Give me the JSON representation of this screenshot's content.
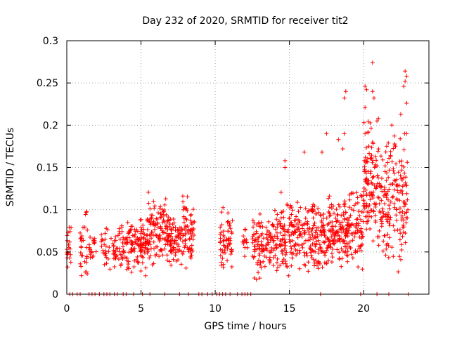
{
  "chart_data": {
    "type": "scatter",
    "title": "Day 232 of 2020, SRMTID for receiver tit2",
    "xlabel": "GPS time / hours",
    "ylabel": "SRMTID / TECUs",
    "xlim": [
      0,
      24.4
    ],
    "ylim": [
      0,
      0.3
    ],
    "xticks": [
      0,
      5,
      10,
      15,
      20
    ],
    "xtick_labels": [
      "0",
      "5",
      "10",
      "15",
      "20"
    ],
    "yticks": [
      0,
      0.05,
      0.1,
      0.15,
      0.2,
      0.25,
      0.3
    ],
    "ytick_labels": [
      "0",
      "0.05",
      "0.1",
      "0.15",
      "0.2",
      "0.25",
      "0.3"
    ],
    "grid": true,
    "marker": "+",
    "color": "#ff0000",
    "clusters": [
      {
        "x_start": 0.0,
        "x_end": 0.3,
        "y_mean": 0.055,
        "y_spread": 0.012,
        "count": 20
      },
      {
        "x_start": 0.9,
        "x_end": 1.4,
        "y_mean": 0.06,
        "y_spread": 0.018,
        "count": 30
      },
      {
        "x_start": 1.5,
        "x_end": 2.0,
        "y_mean": 0.052,
        "y_spread": 0.01,
        "count": 20
      },
      {
        "x_start": 2.3,
        "x_end": 3.0,
        "y_mean": 0.055,
        "y_spread": 0.012,
        "count": 25
      },
      {
        "x_start": 3.1,
        "x_end": 4.5,
        "y_mean": 0.055,
        "y_spread": 0.012,
        "count": 90
      },
      {
        "x_start": 4.5,
        "x_end": 5.5,
        "y_mean": 0.06,
        "y_spread": 0.015,
        "count": 90
      },
      {
        "x_start": 5.5,
        "x_end": 6.8,
        "y_mean": 0.075,
        "y_spread": 0.018,
        "count": 110
      },
      {
        "x_start": 6.8,
        "x_end": 7.8,
        "y_mean": 0.065,
        "y_spread": 0.015,
        "count": 80
      },
      {
        "x_start": 7.8,
        "x_end": 8.6,
        "y_mean": 0.07,
        "y_spread": 0.02,
        "count": 70
      },
      {
        "x_start": 10.3,
        "x_end": 11.2,
        "y_mean": 0.065,
        "y_spread": 0.015,
        "count": 60
      },
      {
        "x_start": 11.8,
        "x_end": 12.2,
        "y_mean": 0.062,
        "y_spread": 0.01,
        "count": 15
      },
      {
        "x_start": 12.5,
        "x_end": 14.0,
        "y_mean": 0.058,
        "y_spread": 0.015,
        "count": 110
      },
      {
        "x_start": 14.0,
        "x_end": 15.5,
        "y_mean": 0.07,
        "y_spread": 0.02,
        "count": 120
      },
      {
        "x_start": 15.5,
        "x_end": 17.0,
        "y_mean": 0.068,
        "y_spread": 0.02,
        "count": 120
      },
      {
        "x_start": 17.0,
        "x_end": 18.0,
        "y_mean": 0.065,
        "y_spread": 0.02,
        "count": 90
      },
      {
        "x_start": 18.0,
        "x_end": 19.0,
        "y_mean": 0.078,
        "y_spread": 0.02,
        "count": 100
      },
      {
        "x_start": 19.0,
        "x_end": 20.0,
        "y_mean": 0.08,
        "y_spread": 0.02,
        "count": 80
      },
      {
        "x_start": 20.0,
        "x_end": 21.0,
        "y_mean": 0.13,
        "y_spread": 0.03,
        "count": 110
      },
      {
        "x_start": 21.0,
        "x_end": 22.0,
        "y_mean": 0.11,
        "y_spread": 0.03,
        "count": 90
      },
      {
        "x_start": 22.0,
        "x_end": 23.0,
        "y_mean": 0.115,
        "y_spread": 0.035,
        "count": 90
      }
    ],
    "outliers": [
      {
        "x": 20.6,
        "y": 0.274
      },
      {
        "x": 22.8,
        "y": 0.264
      },
      {
        "x": 22.9,
        "y": 0.258
      },
      {
        "x": 22.8,
        "y": 0.252
      },
      {
        "x": 22.7,
        "y": 0.246
      },
      {
        "x": 20.1,
        "y": 0.246
      },
      {
        "x": 20.2,
        "y": 0.242
      },
      {
        "x": 20.6,
        "y": 0.24
      },
      {
        "x": 18.8,
        "y": 0.24
      },
      {
        "x": 18.7,
        "y": 0.232
      },
      {
        "x": 20.7,
        "y": 0.232
      },
      {
        "x": 22.9,
        "y": 0.226
      },
      {
        "x": 20.1,
        "y": 0.221
      },
      {
        "x": 22.5,
        "y": 0.213
      },
      {
        "x": 21.0,
        "y": 0.208
      },
      {
        "x": 20.9,
        "y": 0.205
      },
      {
        "x": 21.9,
        "y": 0.2
      },
      {
        "x": 20.3,
        "y": 0.192
      },
      {
        "x": 20.1,
        "y": 0.19
      },
      {
        "x": 22.9,
        "y": 0.19
      },
      {
        "x": 17.5,
        "y": 0.19
      },
      {
        "x": 18.3,
        "y": 0.183
      },
      {
        "x": 18.7,
        "y": 0.19
      },
      {
        "x": 20.6,
        "y": 0.18
      },
      {
        "x": 14.7,
        "y": 0.158
      },
      {
        "x": 16.0,
        "y": 0.168
      },
      {
        "x": 17.2,
        "y": 0.168
      },
      {
        "x": 18.6,
        "y": 0.172
      },
      {
        "x": 14.7,
        "y": 0.15
      }
    ],
    "zero_points_x": [
      0.2,
      0.4,
      0.7,
      0.9,
      1.5,
      1.7,
      1.9,
      2.2,
      2.5,
      2.7,
      2.9,
      3.2,
      3.4,
      3.8,
      4.0,
      4.5,
      5.1,
      5.6,
      6.6,
      7.6,
      8.2,
      8.9,
      9.1,
      9.5,
      9.8,
      10.1,
      10.3,
      10.5,
      10.7,
      11.0,
      11.5,
      11.8,
      12.0,
      12.2,
      12.4,
      17.1,
      19.8,
      20.9,
      21.7,
      23.0
    ]
  }
}
